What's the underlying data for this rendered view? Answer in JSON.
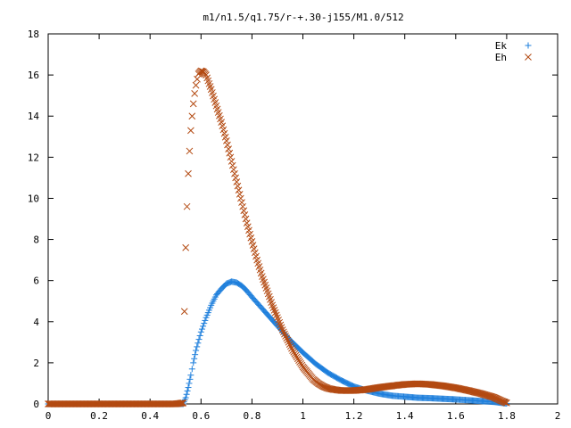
{
  "chart_data": {
    "type": "scatter",
    "title": "m1/n1.5/q1.75/r-+.30-j155/M1.0/512",
    "xlabel": "",
    "ylabel": "",
    "xlim": [
      0,
      2
    ],
    "ylim": [
      0,
      18
    ],
    "x_ticks": [
      "0",
      "0.2",
      "0.4",
      "0.6",
      "0.8",
      "1",
      "1.2",
      "1.4",
      "1.6",
      "1.8",
      "2"
    ],
    "y_ticks": [
      "0",
      "2",
      "4",
      "6",
      "8",
      "10",
      "12",
      "14",
      "16",
      "18"
    ],
    "grid": false,
    "legend": "top-right",
    "series": [
      {
        "name": "Ek",
        "marker": "plus",
        "color": "#1e7fdc",
        "points": [
          [
            0.0,
            0
          ],
          [
            0.1,
            0
          ],
          [
            0.2,
            0
          ],
          [
            0.3,
            0
          ],
          [
            0.4,
            0
          ],
          [
            0.5,
            0
          ],
          [
            0.53,
            0
          ],
          [
            0.54,
            0.3
          ],
          [
            0.55,
            0.8
          ],
          [
            0.56,
            1.4
          ],
          [
            0.57,
            2.0
          ],
          [
            0.58,
            2.6
          ],
          [
            0.6,
            3.5
          ],
          [
            0.62,
            4.2
          ],
          [
            0.64,
            4.8
          ],
          [
            0.66,
            5.3
          ],
          [
            0.68,
            5.6
          ],
          [
            0.7,
            5.85
          ],
          [
            0.72,
            5.95
          ],
          [
            0.74,
            5.9
          ],
          [
            0.76,
            5.75
          ],
          [
            0.78,
            5.5
          ],
          [
            0.8,
            5.2
          ],
          [
            0.85,
            4.5
          ],
          [
            0.9,
            3.8
          ],
          [
            0.95,
            3.1
          ],
          [
            1.0,
            2.5
          ],
          [
            1.05,
            1.95
          ],
          [
            1.1,
            1.5
          ],
          [
            1.15,
            1.15
          ],
          [
            1.2,
            0.85
          ],
          [
            1.25,
            0.65
          ],
          [
            1.3,
            0.5
          ],
          [
            1.35,
            0.4
          ],
          [
            1.4,
            0.35
          ],
          [
            1.45,
            0.3
          ],
          [
            1.5,
            0.28
          ],
          [
            1.55,
            0.25
          ],
          [
            1.6,
            0.22
          ],
          [
            1.65,
            0.18
          ],
          [
            1.7,
            0.14
          ],
          [
            1.75,
            0.1
          ],
          [
            1.78,
            0.05
          ],
          [
            1.8,
            0.02
          ]
        ]
      },
      {
        "name": "Eh",
        "marker": "cross",
        "color": "#b34a12",
        "points": [
          [
            0.0,
            0
          ],
          [
            0.1,
            0
          ],
          [
            0.2,
            0
          ],
          [
            0.3,
            0
          ],
          [
            0.4,
            0
          ],
          [
            0.5,
            0
          ],
          [
            0.53,
            0.05
          ],
          [
            0.535,
            4.5
          ],
          [
            0.54,
            7.6
          ],
          [
            0.545,
            9.6
          ],
          [
            0.55,
            11.2
          ],
          [
            0.555,
            12.3
          ],
          [
            0.56,
            13.3
          ],
          [
            0.565,
            14.0
          ],
          [
            0.57,
            14.6
          ],
          [
            0.575,
            15.1
          ],
          [
            0.58,
            15.5
          ],
          [
            0.585,
            15.8
          ],
          [
            0.59,
            16.05
          ],
          [
            0.6,
            16.2
          ],
          [
            0.61,
            16.15
          ],
          [
            0.62,
            16.0
          ],
          [
            0.64,
            15.3
          ],
          [
            0.66,
            14.5
          ],
          [
            0.68,
            13.7
          ],
          [
            0.7,
            12.8
          ],
          [
            0.72,
            11.8
          ],
          [
            0.74,
            10.8
          ],
          [
            0.76,
            9.8
          ],
          [
            0.78,
            8.8
          ],
          [
            0.8,
            7.9
          ],
          [
            0.82,
            7.0
          ],
          [
            0.84,
            6.2
          ],
          [
            0.86,
            5.5
          ],
          [
            0.88,
            4.8
          ],
          [
            0.9,
            4.2
          ],
          [
            0.92,
            3.6
          ],
          [
            0.94,
            3.1
          ],
          [
            0.96,
            2.6
          ],
          [
            0.98,
            2.2
          ],
          [
            1.0,
            1.8
          ],
          [
            1.02,
            1.5
          ],
          [
            1.04,
            1.2
          ],
          [
            1.06,
            1.0
          ],
          [
            1.08,
            0.85
          ],
          [
            1.1,
            0.75
          ],
          [
            1.12,
            0.7
          ],
          [
            1.15,
            0.65
          ],
          [
            1.2,
            0.65
          ],
          [
            1.25,
            0.7
          ],
          [
            1.3,
            0.8
          ],
          [
            1.35,
            0.88
          ],
          [
            1.4,
            0.95
          ],
          [
            1.45,
            0.98
          ],
          [
            1.5,
            0.95
          ],
          [
            1.55,
            0.88
          ],
          [
            1.6,
            0.78
          ],
          [
            1.65,
            0.65
          ],
          [
            1.7,
            0.5
          ],
          [
            1.75,
            0.32
          ],
          [
            1.78,
            0.15
          ],
          [
            1.8,
            0.05
          ]
        ]
      }
    ]
  }
}
